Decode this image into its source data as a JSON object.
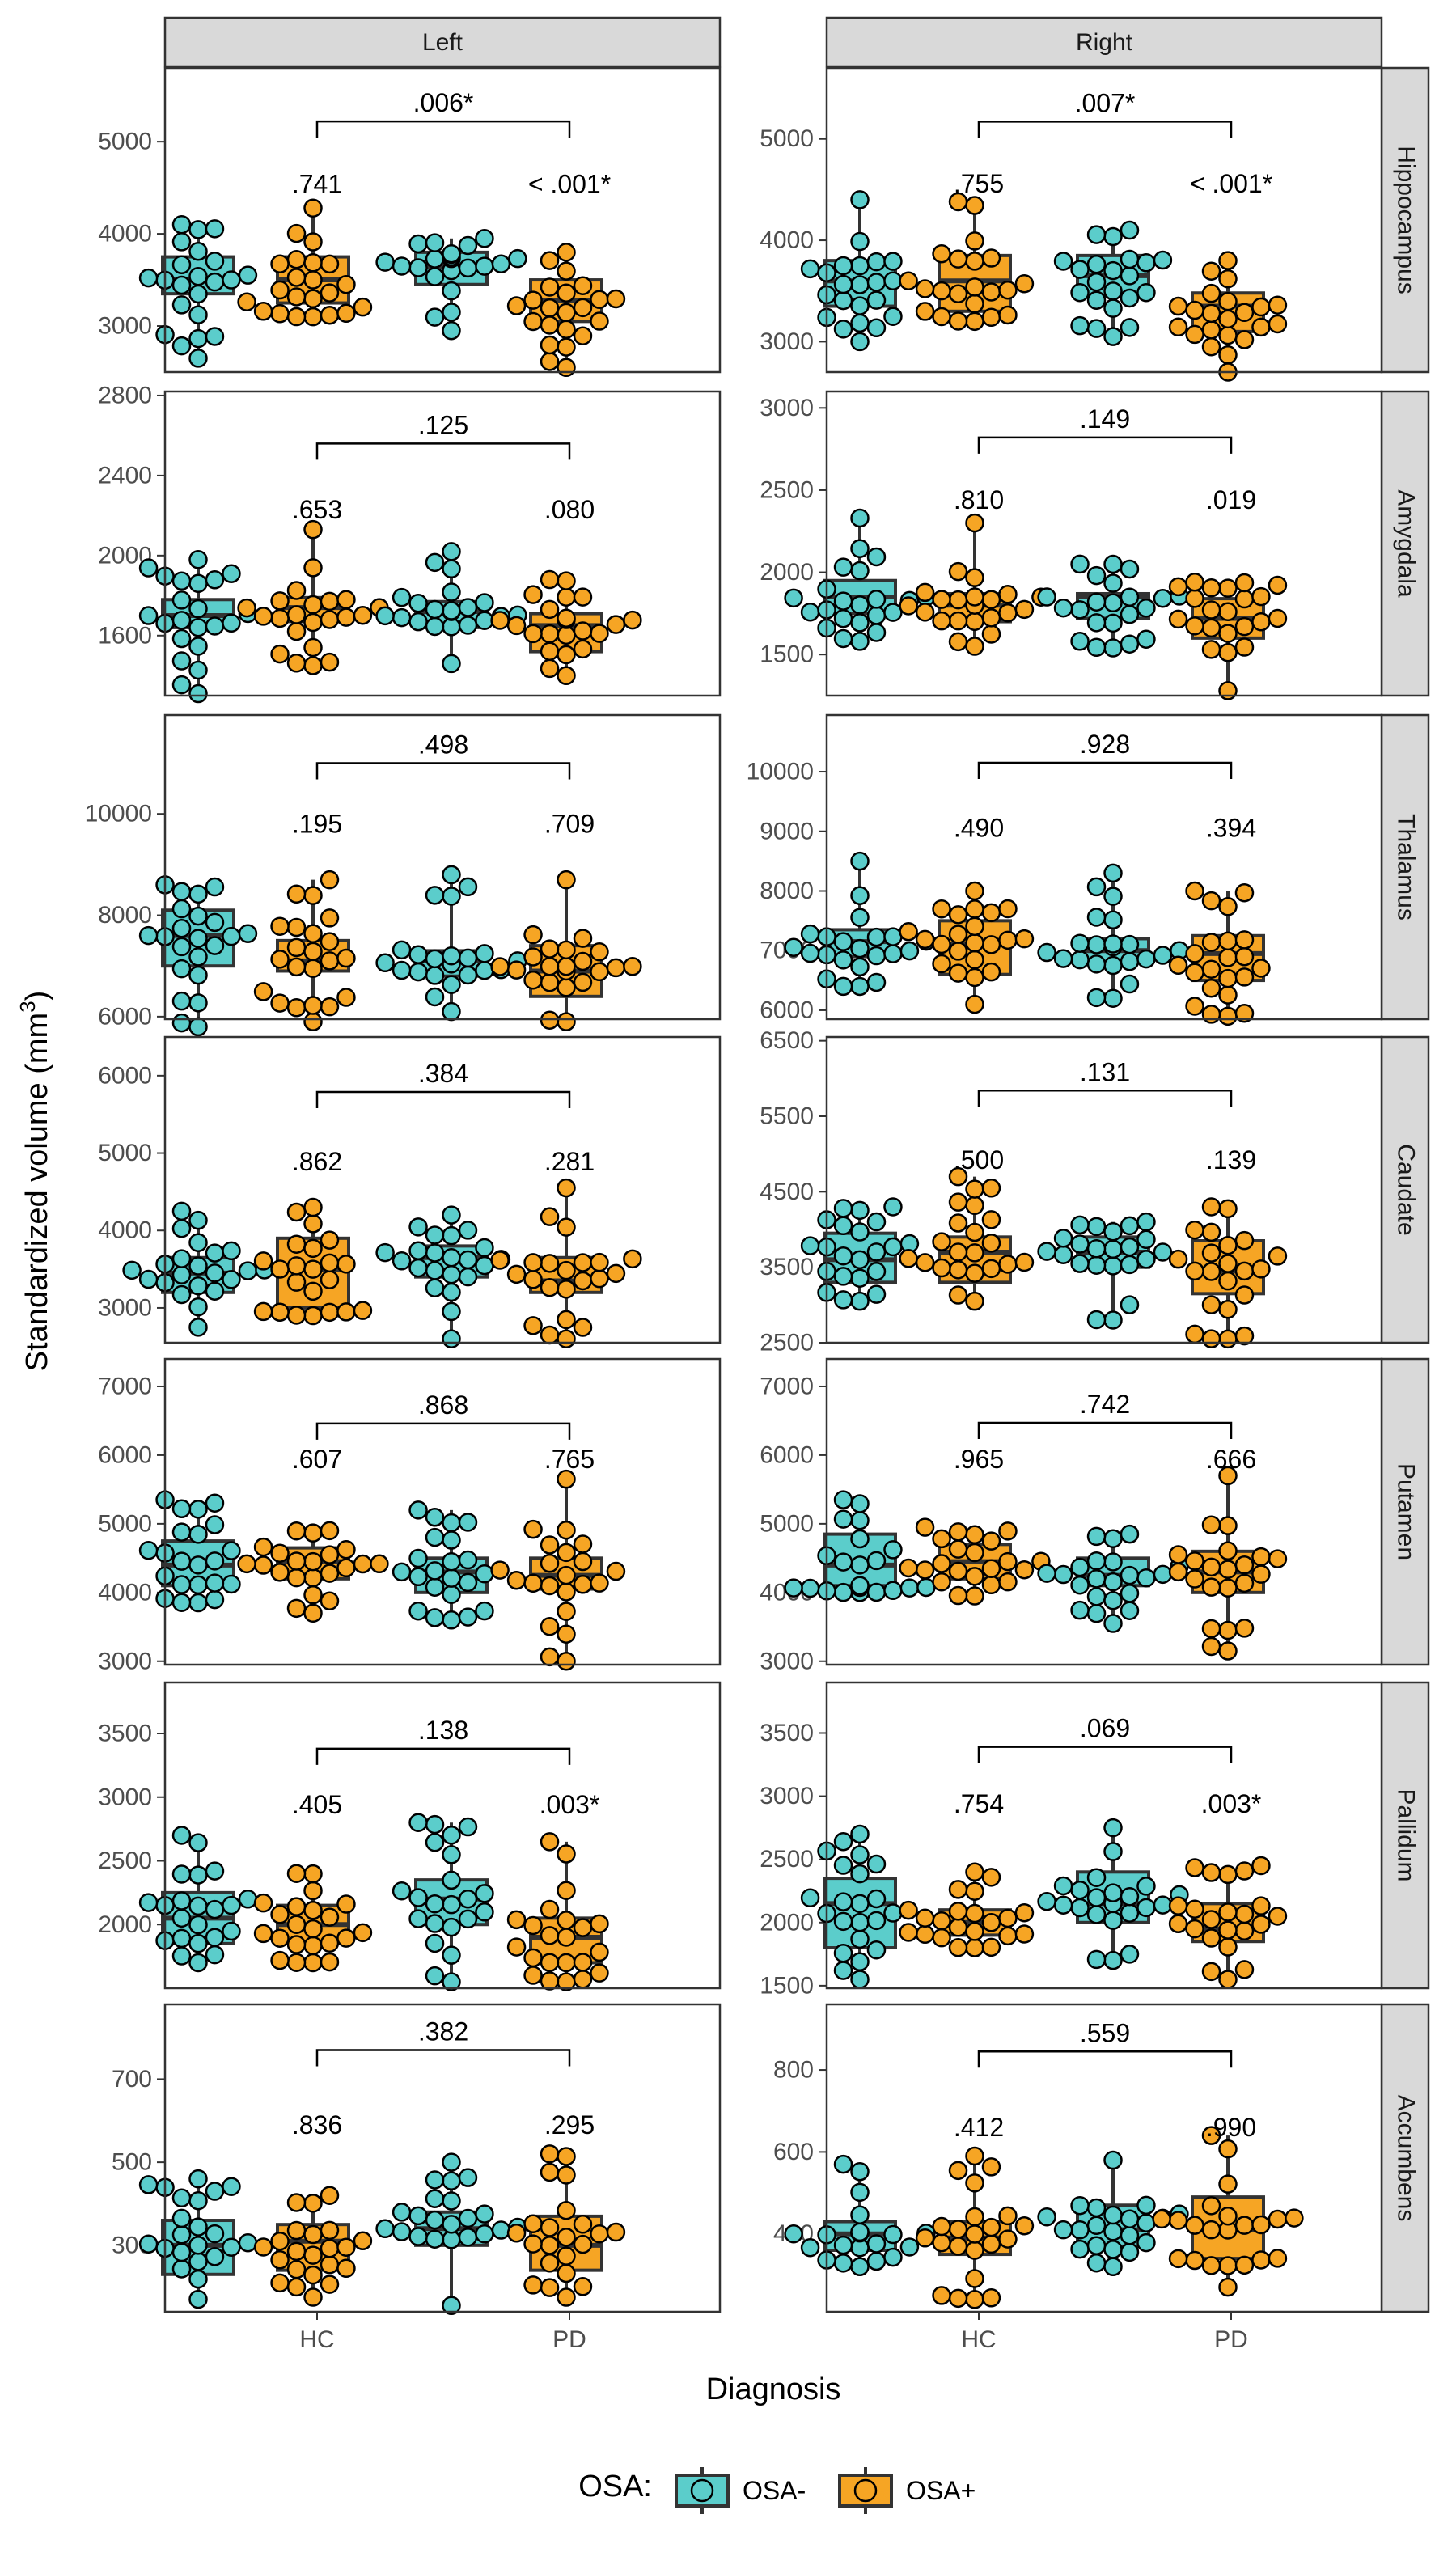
{
  "chart_data": {
    "type": "box",
    "y_title": "Standardized volume (mm",
    "y_title_sup": "3",
    "y_title_close": ")",
    "x_title": "Diagnosis",
    "x_categories": [
      "HC",
      "PD"
    ],
    "legend": {
      "title": "OSA:",
      "position": "bottom",
      "entries": [
        {
          "label": "OSA-",
          "color": "#5bcdcb"
        },
        {
          "label": "OSA+",
          "color": "#f6a524"
        }
      ]
    },
    "columns": [
      "Left",
      "Right"
    ],
    "rows": [
      "Hippocampus",
      "Amygdala",
      "Thalamus",
      "Caudate",
      "Putamen",
      "Pallidum",
      "Accumbens"
    ],
    "grid": true,
    "panels": [
      {
        "row": 0,
        "col": 0,
        "ylim": [
          2500,
          5800
        ],
        "yticks": [
          3000,
          4000,
          5000
        ],
        "ytick_labels": [
          "3000",
          "4000",
          "5000"
        ],
        "bracket_y": 5220,
        "bracket_label": ".006*",
        "group_labels": [
          ".741",
          "< .001*"
        ],
        "group_label_y": 4540,
        "boxes": [
          {
            "group": "HC",
            "osa": "OSA-",
            "min": 2650,
            "q1": 3350,
            "median": 3500,
            "q3": 3750,
            "max": 4100
          },
          {
            "group": "HC",
            "osa": "OSA+",
            "min": 3100,
            "q1": 3250,
            "median": 3500,
            "q3": 3750,
            "max": 4280
          },
          {
            "group": "PD",
            "osa": "OSA-",
            "min": 2950,
            "q1": 3450,
            "median": 3650,
            "q3": 3800,
            "max": 3950
          },
          {
            "group": "PD",
            "osa": "OSA+",
            "min": 2550,
            "q1": 3050,
            "median": 3280,
            "q3": 3500,
            "max": 3800
          }
        ]
      },
      {
        "row": 0,
        "col": 1,
        "ylim": [
          2700,
          5700
        ],
        "yticks": [
          3000,
          4000,
          5000
        ],
        "ytick_labels": [
          "3000",
          "4000",
          "5000"
        ],
        "bracket_y": 5170,
        "bracket_label": ".007*",
        "group_labels": [
          ".755",
          "< .001*"
        ],
        "group_label_y": 4560,
        "boxes": [
          {
            "group": "HC",
            "osa": "OSA-",
            "min": 3000,
            "q1": 3350,
            "median": 3600,
            "q3": 3800,
            "max": 4400
          },
          {
            "group": "HC",
            "osa": "OSA+",
            "min": 3200,
            "q1": 3300,
            "median": 3600,
            "q3": 3850,
            "max": 4380
          },
          {
            "group": "PD",
            "osa": "OSA-",
            "min": 3050,
            "q1": 3450,
            "median": 3650,
            "q3": 3850,
            "max": 4100
          },
          {
            "group": "PD",
            "osa": "OSA+",
            "min": 2700,
            "q1": 3100,
            "median": 3350,
            "q3": 3480,
            "max": 3800
          }
        ]
      },
      {
        "row": 1,
        "col": 0,
        "ylim": [
          1300,
          2820
        ],
        "yticks": [
          1600,
          2000,
          2400,
          2800
        ],
        "ytick_labels": [
          "1600",
          "2000",
          "2400",
          "2800"
        ],
        "bracket_y": 2560,
        "bracket_label": ".125",
        "group_labels": [
          ".653",
          ".080"
        ],
        "group_label_y": 2230,
        "boxes": [
          {
            "group": "HC",
            "osa": "OSA-",
            "min": 1310,
            "q1": 1640,
            "median": 1700,
            "q3": 1780,
            "max": 1980
          },
          {
            "group": "HC",
            "osa": "OSA+",
            "min": 1450,
            "q1": 1670,
            "median": 1740,
            "q3": 1790,
            "max": 2130
          },
          {
            "group": "PD",
            "osa": "OSA-",
            "min": 1460,
            "q1": 1640,
            "median": 1720,
            "q3": 1770,
            "max": 2020
          },
          {
            "group": "PD",
            "osa": "OSA+",
            "min": 1400,
            "q1": 1520,
            "median": 1650,
            "q3": 1710,
            "max": 1880
          }
        ]
      },
      {
        "row": 1,
        "col": 1,
        "ylim": [
          1250,
          3100
        ],
        "yticks": [
          1500,
          2000,
          2500,
          3000
        ],
        "ytick_labels": [
          "1500",
          "2000",
          "2500",
          "3000"
        ],
        "bracket_y": 2820,
        "bracket_label": ".149",
        "group_labels": [
          ".810",
          ".019"
        ],
        "group_label_y": 2440,
        "boxes": [
          {
            "group": "HC",
            "osa": "OSA-",
            "min": 1580,
            "q1": 1750,
            "median": 1850,
            "q3": 1950,
            "max": 2330
          },
          {
            "group": "HC",
            "osa": "OSA+",
            "min": 1550,
            "q1": 1700,
            "median": 1800,
            "q3": 1870,
            "max": 2300
          },
          {
            "group": "PD",
            "osa": "OSA-",
            "min": 1540,
            "q1": 1720,
            "median": 1850,
            "q3": 1870,
            "max": 2050
          },
          {
            "group": "PD",
            "osa": "OSA+",
            "min": 1280,
            "q1": 1600,
            "median": 1720,
            "q3": 1840,
            "max": 1940
          }
        ]
      },
      {
        "row": 2,
        "col": 0,
        "ylim": [
          5950,
          11950
        ],
        "yticks": [
          6000,
          8000,
          10000
        ],
        "ytick_labels": [
          "6000",
          "8000",
          "10000"
        ],
        "bracket_y": 11000,
        "bracket_label": ".498",
        "group_labels": [
          ".195",
          ".709"
        ],
        "group_label_y": 9800,
        "boxes": [
          {
            "group": "HC",
            "osa": "OSA-",
            "min": 5800,
            "q1": 7000,
            "median": 7600,
            "q3": 8100,
            "max": 8600
          },
          {
            "group": "HC",
            "osa": "OSA+",
            "min": 5900,
            "q1": 6900,
            "median": 7100,
            "q3": 7500,
            "max": 8700
          },
          {
            "group": "PD",
            "osa": "OSA-",
            "min": 6100,
            "q1": 6800,
            "median": 7100,
            "q3": 7300,
            "max": 8800
          },
          {
            "group": "PD",
            "osa": "OSA+",
            "min": 5900,
            "q1": 6400,
            "median": 6900,
            "q3": 7400,
            "max": 8700
          }
        ]
      },
      {
        "row": 2,
        "col": 1,
        "ylim": [
          5850,
          10950
        ],
        "yticks": [
          6000,
          7000,
          8000,
          9000,
          10000
        ],
        "ytick_labels": [
          "6000",
          "7000",
          "8000",
          "9000",
          "10000"
        ],
        "bracket_y": 10150,
        "bracket_label": ".928",
        "group_labels": [
          ".490",
          ".394"
        ],
        "group_label_y": 9060,
        "boxes": [
          {
            "group": "HC",
            "osa": "OSA-",
            "min": 6400,
            "q1": 6900,
            "median": 7150,
            "q3": 7350,
            "max": 8500
          },
          {
            "group": "HC",
            "osa": "OSA+",
            "min": 6100,
            "q1": 6600,
            "median": 7100,
            "q3": 7500,
            "max": 8000
          },
          {
            "group": "PD",
            "osa": "OSA-",
            "min": 6200,
            "q1": 6800,
            "median": 7000,
            "q3": 7200,
            "max": 8300
          },
          {
            "group": "PD",
            "osa": "OSA+",
            "min": 5900,
            "q1": 6500,
            "median": 6950,
            "q3": 7250,
            "max": 8000
          }
        ]
      },
      {
        "row": 3,
        "col": 0,
        "ylim": [
          2550,
          6500
        ],
        "yticks": [
          3000,
          4000,
          5000,
          6000
        ],
        "ytick_labels": [
          "3000",
          "4000",
          "5000",
          "6000"
        ],
        "bracket_y": 5790,
        "bracket_label": ".384",
        "group_labels": [
          ".862",
          ".281"
        ],
        "group_label_y": 4890,
        "boxes": [
          {
            "group": "HC",
            "osa": "OSA-",
            "min": 2750,
            "q1": 3200,
            "median": 3450,
            "q3": 3650,
            "max": 4250
          },
          {
            "group": "HC",
            "osa": "OSA+",
            "min": 2900,
            "q1": 3000,
            "median": 3500,
            "q3": 3900,
            "max": 4300
          },
          {
            "group": "PD",
            "osa": "OSA-",
            "min": 2600,
            "q1": 3400,
            "median": 3650,
            "q3": 3800,
            "max": 4200
          },
          {
            "group": "PD",
            "osa": "OSA+",
            "min": 2600,
            "q1": 3200,
            "median": 3350,
            "q3": 3650,
            "max": 4550
          }
        ]
      },
      {
        "row": 3,
        "col": 1,
        "ylim": [
          2500,
          6550
        ],
        "yticks": [
          2500,
          3500,
          4500,
          5500,
          6500
        ],
        "ytick_labels": [
          "2500",
          "3500",
          "4500",
          "5500",
          "6500"
        ],
        "bracket_y": 5840,
        "bracket_label": ".131",
        "group_labels": [
          ".500",
          ".139"
        ],
        "group_label_y": 4920,
        "boxes": [
          {
            "group": "HC",
            "osa": "OSA-",
            "min": 3050,
            "q1": 3300,
            "median": 3600,
            "q3": 3950,
            "max": 4300
          },
          {
            "group": "HC",
            "osa": "OSA+",
            "min": 3050,
            "q1": 3300,
            "median": 3700,
            "q3": 3900,
            "max": 4700
          },
          {
            "group": "PD",
            "osa": "OSA-",
            "min": 2800,
            "q1": 3500,
            "median": 3700,
            "q3": 3900,
            "max": 4100
          },
          {
            "group": "PD",
            "osa": "OSA+",
            "min": 2550,
            "q1": 3150,
            "median": 3450,
            "q3": 3850,
            "max": 4300
          }
        ]
      },
      {
        "row": 4,
        "col": 0,
        "ylim": [
          2950,
          7400
        ],
        "yticks": [
          3000,
          4000,
          5000,
          6000,
          7000
        ],
        "ytick_labels": [
          "3000",
          "4000",
          "5000",
          "6000",
          "7000"
        ],
        "bracket_y": 6460,
        "bracket_label": ".868",
        "group_labels": [
          ".607",
          ".765"
        ],
        "group_label_y": 5940,
        "boxes": [
          {
            "group": "HC",
            "osa": "OSA-",
            "min": 3850,
            "q1": 4100,
            "median": 4400,
            "q3": 4750,
            "max": 5350
          },
          {
            "group": "HC",
            "osa": "OSA+",
            "min": 3700,
            "q1": 4200,
            "median": 4450,
            "q3": 4650,
            "max": 4900
          },
          {
            "group": "PD",
            "osa": "OSA-",
            "min": 3600,
            "q1": 4000,
            "median": 4300,
            "q3": 4500,
            "max": 5200
          },
          {
            "group": "PD",
            "osa": "OSA+",
            "min": 3000,
            "q1": 4050,
            "median": 4250,
            "q3": 4500,
            "max": 5650
          }
        ]
      },
      {
        "row": 4,
        "col": 1,
        "ylim": [
          2950,
          7400
        ],
        "yticks": [
          3000,
          4000,
          5000,
          6000,
          7000
        ],
        "ytick_labels": [
          "3000",
          "4000",
          "5000",
          "6000",
          "7000"
        ],
        "bracket_y": 6470,
        "bracket_label": ".742",
        "group_labels": [
          ".965",
          ".666"
        ],
        "group_label_y": 5940,
        "boxes": [
          {
            "group": "HC",
            "osa": "OSA-",
            "min": 4000,
            "q1": 4100,
            "median": 4400,
            "q3": 4850,
            "max": 5350
          },
          {
            "group": "HC",
            "osa": "OSA+",
            "min": 3950,
            "q1": 4200,
            "median": 4450,
            "q3": 4700,
            "max": 4950
          },
          {
            "group": "PD",
            "osa": "OSA-",
            "min": 3550,
            "q1": 4100,
            "median": 4250,
            "q3": 4500,
            "max": 4850
          },
          {
            "group": "PD",
            "osa": "OSA+",
            "min": 3150,
            "q1": 4000,
            "median": 4300,
            "q3": 4600,
            "max": 5700
          }
        ]
      },
      {
        "row": 5,
        "col": 0,
        "ylim": [
          1500,
          3900
        ],
        "yticks": [
          2000,
          2500,
          3000,
          3500
        ],
        "ytick_labels": [
          "2000",
          "2500",
          "3000",
          "3500"
        ],
        "bracket_y": 3380,
        "bracket_label": ".138",
        "group_labels": [
          ".405",
          ".003*"
        ],
        "group_label_y": 2940,
        "boxes": [
          {
            "group": "HC",
            "osa": "OSA-",
            "min": 1700,
            "q1": 1850,
            "median": 2050,
            "q3": 2250,
            "max": 2700
          },
          {
            "group": "HC",
            "osa": "OSA+",
            "min": 1700,
            "q1": 1850,
            "median": 2000,
            "q3": 2150,
            "max": 2400
          },
          {
            "group": "PD",
            "osa": "OSA-",
            "min": 1550,
            "q1": 2000,
            "median": 2200,
            "q3": 2350,
            "max": 2800
          },
          {
            "group": "PD",
            "osa": "OSA+",
            "min": 1550,
            "q1": 1700,
            "median": 1900,
            "q3": 2050,
            "max": 2650
          }
        ]
      },
      {
        "row": 5,
        "col": 1,
        "ylim": [
          1480,
          3900
        ],
        "yticks": [
          1500,
          2000,
          2500,
          3000,
          3500
        ],
        "ytick_labels": [
          "1500",
          "2000",
          "2500",
          "3000",
          "3500"
        ],
        "bracket_y": 3390,
        "bracket_label": ".069",
        "group_labels": [
          ".754",
          ".003*"
        ],
        "group_label_y": 2940,
        "boxes": [
          {
            "group": "HC",
            "osa": "OSA-",
            "min": 1550,
            "q1": 1800,
            "median": 2150,
            "q3": 2350,
            "max": 2700
          },
          {
            "group": "HC",
            "osa": "OSA+",
            "min": 1800,
            "q1": 1900,
            "median": 2000,
            "q3": 2100,
            "max": 2400
          },
          {
            "group": "PD",
            "osa": "OSA-",
            "min": 1700,
            "q1": 2000,
            "median": 2150,
            "q3": 2400,
            "max": 2750
          },
          {
            "group": "PD",
            "osa": "OSA+",
            "min": 1550,
            "q1": 1850,
            "median": 1950,
            "q3": 2150,
            "max": 2450
          }
        ]
      },
      {
        "row": 6,
        "col": 0,
        "ylim": [
          140,
          880
        ],
        "yticks": [
          300,
          500,
          700
        ],
        "ytick_labels": [
          "300",
          "500",
          "700"
        ],
        "bracket_y": 770,
        "bracket_label": ".382",
        "group_labels": [
          ".836",
          ".295"
        ],
        "group_label_y": 590,
        "boxes": [
          {
            "group": "HC",
            "osa": "OSA-",
            "min": 170,
            "q1": 230,
            "median": 300,
            "q3": 360,
            "max": 460
          },
          {
            "group": "HC",
            "osa": "OSA+",
            "min": 175,
            "q1": 240,
            "median": 310,
            "q3": 350,
            "max": 420
          },
          {
            "group": "PD",
            "osa": "OSA-",
            "min": 155,
            "q1": 300,
            "median": 340,
            "q3": 380,
            "max": 500
          },
          {
            "group": "PD",
            "osa": "OSA+",
            "min": 175,
            "q1": 240,
            "median": 300,
            "q3": 370,
            "max": 520
          }
        ]
      },
      {
        "row": 6,
        "col": 1,
        "ylim": [
          210,
          960
        ],
        "yticks": [
          400,
          600,
          800
        ],
        "ytick_labels": [
          "400",
          "600",
          "800"
        ],
        "bracket_y": 845,
        "bracket_label": ".559",
        "group_labels": [
          ".412",
          ".990"
        ],
        "group_label_y": 660,
        "boxes": [
          {
            "group": "HC",
            "osa": "OSA-",
            "min": 320,
            "q1": 360,
            "median": 400,
            "q3": 430,
            "max": 570
          },
          {
            "group": "HC",
            "osa": "OSA+",
            "min": 240,
            "q1": 350,
            "median": 390,
            "q3": 430,
            "max": 590
          },
          {
            "group": "PD",
            "osa": "OSA-",
            "min": 320,
            "q1": 370,
            "median": 410,
            "q3": 470,
            "max": 580
          },
          {
            "group": "PD",
            "osa": "OSA+",
            "min": 270,
            "q1": 340,
            "median": 410,
            "q3": 490,
            "max": 640
          }
        ]
      }
    ]
  }
}
